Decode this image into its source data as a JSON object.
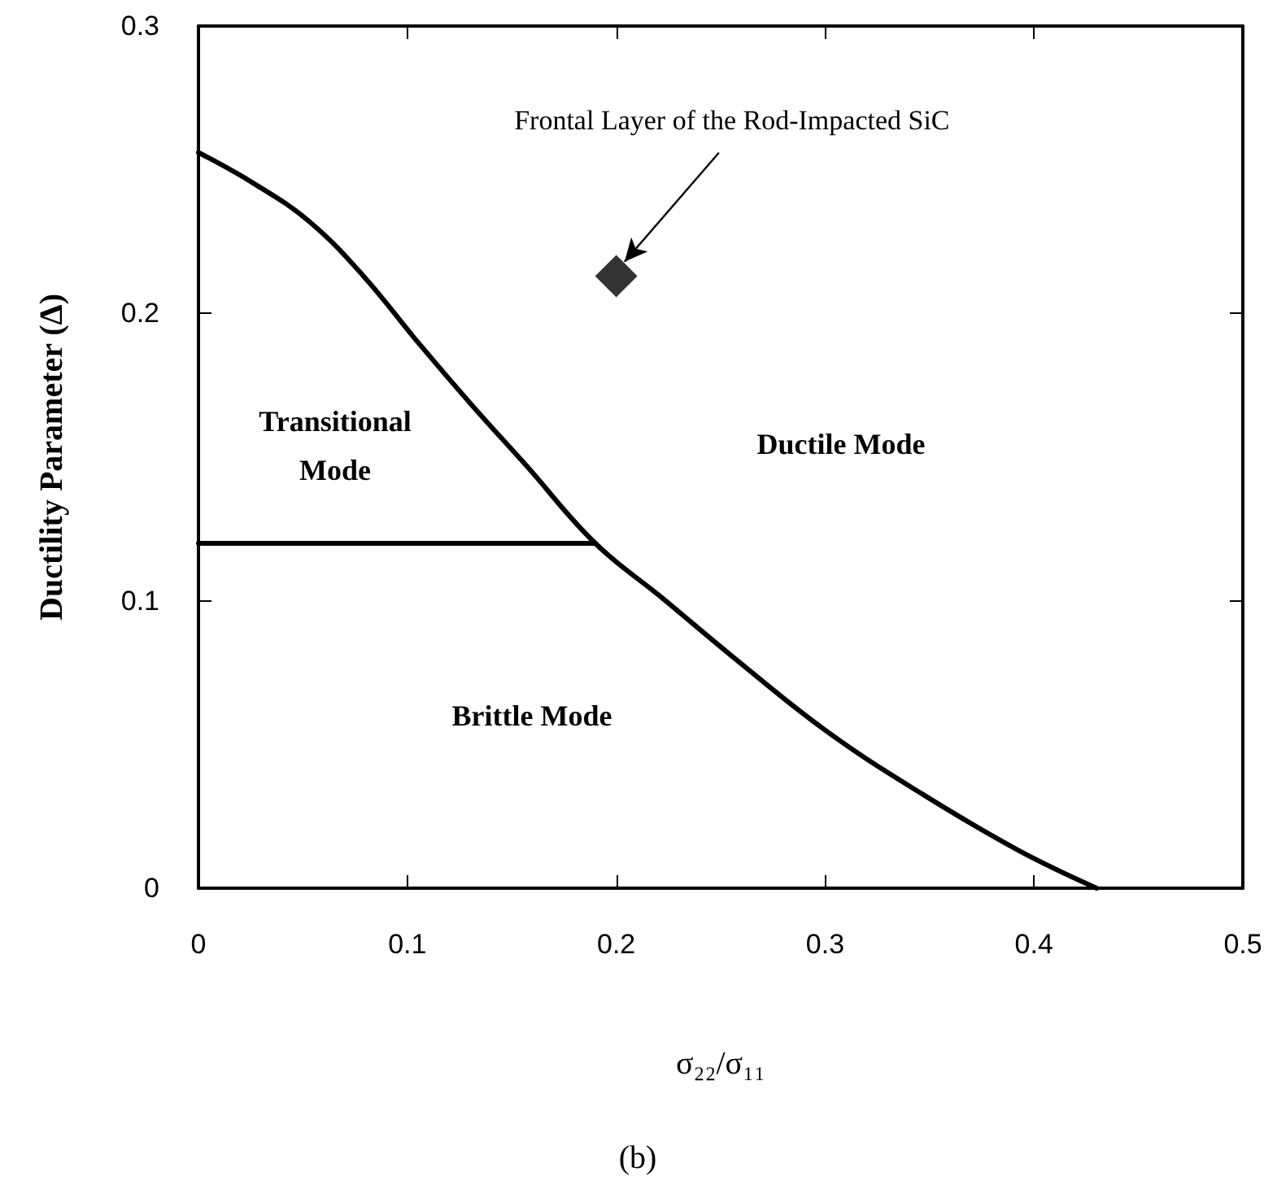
{
  "chart_data": {
    "type": "line",
    "xlabel": "σ₂₂/σ₁₁",
    "ylabel": "Ductility Parameter (Δ)",
    "xlim": [
      0,
      0.5
    ],
    "xticks": [
      0,
      0.1,
      0.2,
      0.3,
      0.4,
      0.5
    ],
    "ylim": [
      0,
      0.3
    ],
    "yticks": [
      0,
      0.1,
      0.2,
      0.3
    ],
    "grid": false,
    "marker": "none",
    "line_style": "solid",
    "series": [
      {
        "color": "#000000",
        "x": [
          0,
          0.027,
          0.053,
          0.079,
          0.105,
          0.131,
          0.157,
          0.19,
          0.222,
          0.255,
          0.3,
          0.346,
          0.393,
          0.43
        ],
        "values": [
          0.256,
          0.245,
          0.232,
          0.213,
          0.19,
          0.168,
          0.147,
          0.12,
          0.101,
          0.081,
          0.055,
          0.033,
          0.013,
          0
        ]
      },
      {
        "color": "#000000",
        "x": [
          0,
          0.19
        ],
        "values": [
          0.12,
          0.12
        ]
      },
      {
        "type": "scatter",
        "marker": "diamond",
        "color": "#000000",
        "x": [
          0.2
        ],
        "values": [
          0.213
        ]
      }
    ],
    "annotations": [
      {
        "text": "Frontal Layer of the Rod-Impacted SiC",
        "x": 0.204,
        "y": 0.218
      },
      "Transitional\nMode",
      "Ductile Mode",
      "Brittle Mode",
      "(b)"
    ]
  }
}
